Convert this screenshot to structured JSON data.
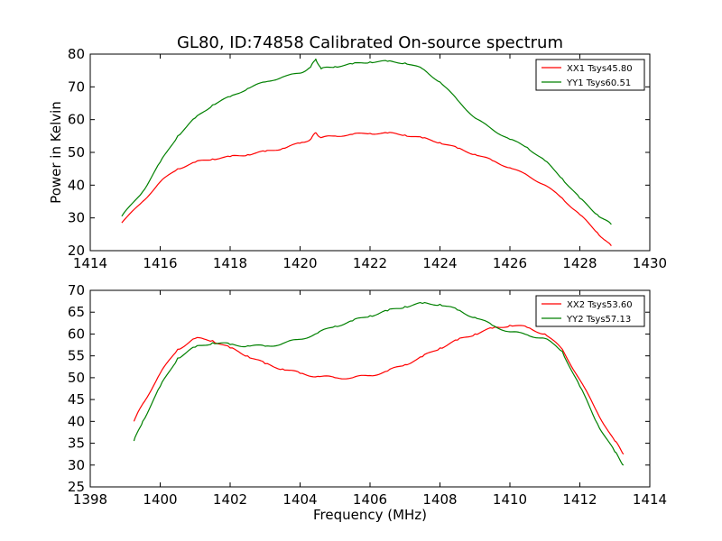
{
  "figure": {
    "title": "GL80, ID:74858 Calibrated On-source spectrum",
    "background": "#ffffff"
  },
  "chart_data": [
    {
      "type": "line",
      "title": "GL80, ID:74858 Calibrated On-source spectrum",
      "xlabel": "",
      "ylabel": "Power in Kelvin",
      "xlim": [
        1414,
        1430
      ],
      "ylim": [
        20,
        80
      ],
      "xticks": [
        1414,
        1416,
        1418,
        1420,
        1422,
        1424,
        1426,
        1428,
        1430
      ],
      "yticks": [
        20,
        30,
        40,
        50,
        60,
        70,
        80
      ],
      "grid": false,
      "legend_position": "top-right",
      "series": [
        {
          "name": "XX1 Tsys45.80",
          "color": "#ff0000",
          "x": [
            1414.9,
            1415.5,
            1416.0,
            1416.5,
            1417.0,
            1417.5,
            1418.0,
            1418.5,
            1419.0,
            1419.5,
            1420.0,
            1420.3,
            1420.45,
            1420.6,
            1421.0,
            1421.5,
            1422.0,
            1422.5,
            1423.0,
            1423.5,
            1424.0,
            1424.5,
            1425.0,
            1425.5,
            1426.0,
            1426.5,
            1427.0,
            1427.5,
            1428.0,
            1428.5,
            1428.9
          ],
          "y": [
            28.5,
            35,
            41,
            45,
            47,
            48,
            48.7,
            49.3,
            50.3,
            51.2,
            52.8,
            54,
            56,
            54.5,
            55,
            55.5,
            55.8,
            55.9,
            55.3,
            54.4,
            53,
            51.3,
            49.4,
            47.5,
            45.3,
            43,
            40,
            36,
            31,
            25.5,
            21.5
          ]
        },
        {
          "name": "YY1 Tsys60.51",
          "color": "#008000",
          "x": [
            1414.9,
            1415.5,
            1416.0,
            1416.5,
            1417.0,
            1417.5,
            1418.0,
            1418.5,
            1419.0,
            1419.5,
            1420.0,
            1420.3,
            1420.45,
            1420.6,
            1421.0,
            1421.5,
            1422.0,
            1422.5,
            1423.0,
            1423.5,
            1424.0,
            1424.5,
            1425.0,
            1425.5,
            1426.0,
            1426.5,
            1427.0,
            1427.5,
            1428.0,
            1428.5,
            1428.9
          ],
          "y": [
            30.5,
            38,
            47,
            55,
            60.5,
            64.5,
            67,
            69.5,
            71.5,
            73,
            74.2,
            76,
            78.5,
            75.5,
            76.2,
            77,
            77.6,
            77.8,
            77.3,
            75.5,
            71.5,
            66,
            60.5,
            57,
            54,
            51.5,
            47.5,
            42,
            36,
            31,
            28
          ]
        }
      ]
    },
    {
      "type": "line",
      "title": "",
      "xlabel": "Frequency (MHz)",
      "ylabel": "",
      "xlim": [
        1398,
        1414
      ],
      "ylim": [
        25,
        70
      ],
      "xticks": [
        1398,
        1400,
        1402,
        1404,
        1406,
        1408,
        1410,
        1412,
        1414
      ],
      "yticks": [
        25,
        30,
        35,
        40,
        45,
        50,
        55,
        60,
        65,
        70
      ],
      "grid": false,
      "legend_position": "top-right",
      "series": [
        {
          "name": "XX2 Tsys53.60",
          "color": "#ff0000",
          "x": [
            1399.25,
            1399.5,
            1400.0,
            1400.5,
            1401.0,
            1401.5,
            1402.0,
            1402.5,
            1403.0,
            1403.5,
            1404.0,
            1404.5,
            1405.0,
            1405.5,
            1406.0,
            1406.5,
            1407.0,
            1407.5,
            1408.0,
            1408.5,
            1409.0,
            1409.5,
            1410.0,
            1410.5,
            1411.0,
            1411.5,
            1412.0,
            1412.5,
            1413.0,
            1413.25
          ],
          "y": [
            40,
            44,
            51,
            56.5,
            59,
            58.5,
            56.8,
            55,
            53.2,
            52,
            51,
            50.3,
            50,
            50,
            50.5,
            51.5,
            53,
            54.8,
            56.8,
            58.6,
            60,
            61.3,
            62,
            61.5,
            60,
            56.5,
            49.5,
            42,
            35.5,
            32.5
          ]
        },
        {
          "name": "YY2 Tsys57.13",
          "color": "#008000",
          "x": [
            1399.25,
            1399.5,
            1400.0,
            1400.5,
            1401.0,
            1401.5,
            1402.0,
            1402.5,
            1403.0,
            1403.5,
            1404.0,
            1404.5,
            1405.0,
            1405.5,
            1406.0,
            1406.5,
            1407.0,
            1407.5,
            1408.0,
            1408.5,
            1409.0,
            1409.5,
            1410.0,
            1410.5,
            1411.0,
            1411.5,
            1412.0,
            1412.5,
            1413.0,
            1413.25
          ],
          "y": [
            35.5,
            40,
            48,
            54.5,
            57,
            58,
            57.6,
            57.3,
            57.2,
            57.8,
            58.8,
            60.2,
            61.8,
            63,
            64.2,
            65.3,
            66.3,
            67,
            66.8,
            65.5,
            63.8,
            62,
            60.5,
            59.8,
            59,
            56,
            48,
            39.5,
            33,
            30
          ]
        }
      ]
    }
  ]
}
